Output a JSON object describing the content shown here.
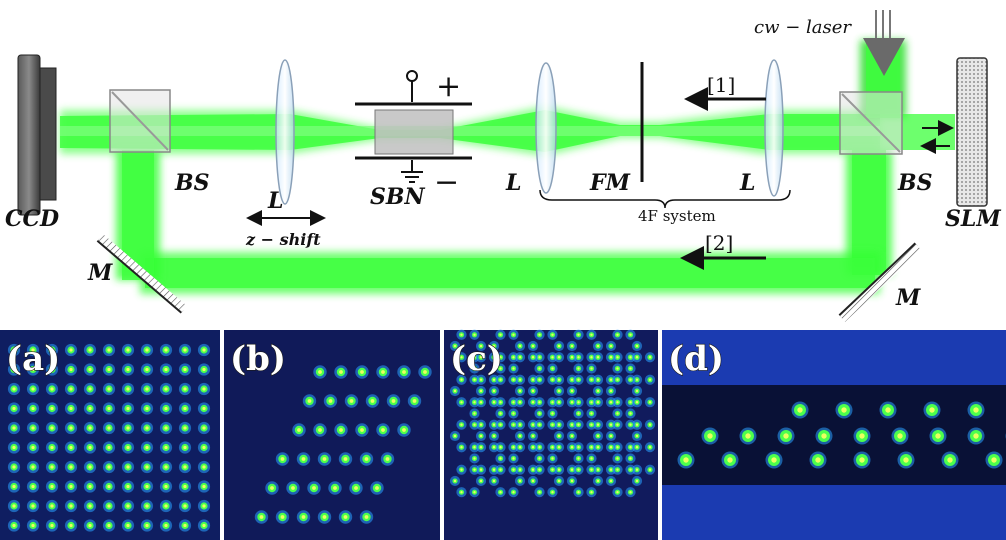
{
  "labels": {
    "ccd": "CCD",
    "bs_left": "BS",
    "lens_left": "L",
    "sbn": "SBN",
    "lens_mid": "L",
    "fm": "FM",
    "lens_right": "L",
    "bs_right": "BS",
    "slm": "SLM",
    "mirror_left": "M",
    "mirror_right": "M",
    "z_shift": "z − shift",
    "four_f": "4F system",
    "path1": "[1]",
    "path2": "[2]",
    "laser": "cw − laser",
    "plus": "+",
    "minus": "−"
  },
  "panels": [
    {
      "id": "a",
      "label": "(a)",
      "lattice": "square"
    },
    {
      "id": "b",
      "label": "(b)",
      "lattice": "rhombic"
    },
    {
      "id": "c",
      "label": "(c)",
      "lattice": "honeycomb"
    },
    {
      "id": "d",
      "label": "(d)",
      "lattice": "ribbon"
    }
  ],
  "colors": {
    "beam": "#33ff33",
    "panel_bg": "#0a1040",
    "spot": "#4cff4c"
  }
}
